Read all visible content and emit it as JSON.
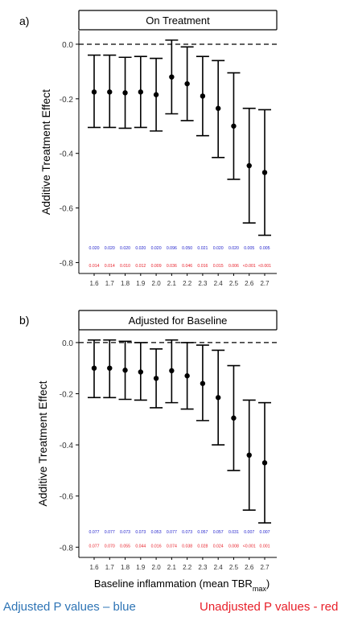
{
  "shared_xlabel_main": "Baseline inflammation (mean TBR",
  "shared_xlabel_sub": "max",
  "shared_xlabel_close": ")",
  "footer": {
    "left": "Adjusted P values – blue",
    "right": "Unadjusted P values - red"
  },
  "colors": {
    "adjusted_p": "#2222cc",
    "unadjusted_p": "#e8202a",
    "footer_blue": "#2e74b5"
  },
  "chart_data": [
    {
      "type": "scatter",
      "panel_label": "a)",
      "title": "On Treatment",
      "ylabel": "Additive Treatment Effect",
      "xlabel": "",
      "ylim": [
        -0.84,
        0.05
      ],
      "yticks": [
        0.0,
        -0.2,
        -0.4,
        -0.6,
        -0.8
      ],
      "ytick_labels": [
        "0.0",
        "-0.2",
        "-0.4",
        "-0.6",
        "-0.8"
      ],
      "reference_line": 0.0,
      "categories": [
        "1.6",
        "1.7",
        "1.8",
        "1.9",
        "2.0",
        "2.1",
        "2.2",
        "2.3",
        "2.4",
        "2.5",
        "2.6",
        "2.7"
      ],
      "estimate": [
        -0.175,
        -0.175,
        -0.178,
        -0.175,
        -0.185,
        -0.12,
        -0.145,
        -0.19,
        -0.235,
        -0.3,
        -0.445,
        -0.47
      ],
      "ci_low": [
        -0.305,
        -0.305,
        -0.308,
        -0.305,
        -0.318,
        -0.255,
        -0.28,
        -0.335,
        -0.415,
        -0.495,
        -0.655,
        -0.7
      ],
      "ci_high": [
        -0.04,
        -0.04,
        -0.048,
        -0.045,
        -0.052,
        0.015,
        -0.01,
        -0.045,
        -0.06,
        -0.105,
        -0.235,
        -0.24
      ],
      "adjusted_p": [
        "0.020",
        "0.020",
        "0.020",
        "0.020",
        "0.020",
        "0.096",
        "0.050",
        "0.021",
        "0.020",
        "0.020",
        "0.005",
        "0.005"
      ],
      "unadjusted_p": [
        "0.014",
        "0.014",
        "0.010",
        "0.012",
        "0.009",
        "0.036",
        "0.046",
        "0.016",
        "0.015",
        "0.006",
        "<0.001",
        "<0.001"
      ],
      "p_rows_y": [
        -0.745,
        -0.81
      ]
    },
    {
      "type": "scatter",
      "panel_label": "b)",
      "title": "Adjusted for Baseline",
      "ylabel": "Additive Treatment Effect",
      "xlabel": "",
      "ylim": [
        -0.84,
        0.05
      ],
      "yticks": [
        0.0,
        -0.2,
        -0.4,
        -0.6,
        -0.8
      ],
      "ytick_labels": [
        "0.0",
        "-0.2",
        "-0.4",
        "-0.6",
        "-0.8"
      ],
      "reference_line": 0.0,
      "categories": [
        "1.6",
        "1.7",
        "1.8",
        "1.9",
        "2.0",
        "2.1",
        "2.2",
        "2.3",
        "2.4",
        "2.5",
        "2.6",
        "2.7"
      ],
      "estimate": [
        -0.1,
        -0.1,
        -0.108,
        -0.115,
        -0.14,
        -0.11,
        -0.13,
        -0.16,
        -0.215,
        -0.295,
        -0.44,
        -0.47
      ],
      "ci_low": [
        -0.215,
        -0.215,
        -0.222,
        -0.225,
        -0.255,
        -0.235,
        -0.26,
        -0.305,
        -0.4,
        -0.5,
        -0.655,
        -0.705
      ],
      "ci_high": [
        0.01,
        0.01,
        0.005,
        0.0,
        -0.025,
        0.01,
        0.0,
        -0.01,
        -0.03,
        -0.09,
        -0.225,
        -0.235
      ],
      "adjusted_p": [
        "0.077",
        "0.077",
        "0.073",
        "0.073",
        "0.053",
        "0.077",
        "0.073",
        "0.057",
        "0.057",
        "0.031",
        "0.007",
        "0.007"
      ],
      "unadjusted_p": [
        "0.077",
        "0.070",
        "0.055",
        "0.044",
        "0.016",
        "0.074",
        "0.038",
        "0.028",
        "0.024",
        "0.008",
        "<0.001",
        "0.001"
      ],
      "p_rows_y": [
        -0.74,
        -0.795
      ]
    }
  ]
}
